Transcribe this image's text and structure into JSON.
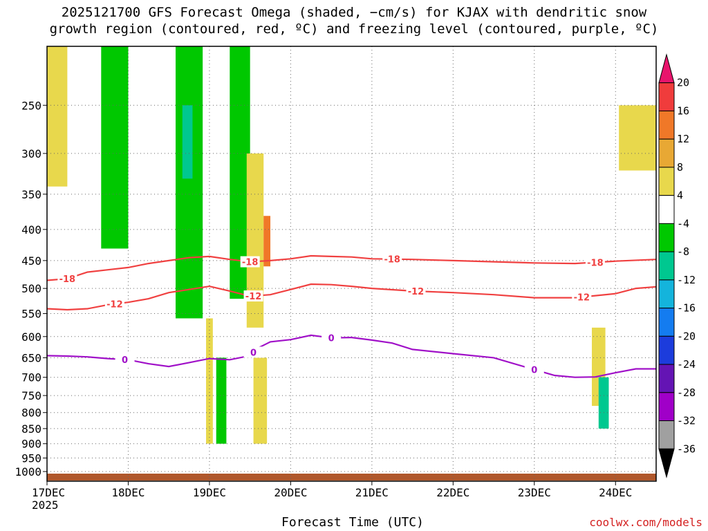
{
  "title_line1": "2025121700 GFS Forecast Omega (shaded, −cm/s) for KJAX with dendritic snow",
  "title_line2": "growth region (contoured, red, ºC) and freezing level (contoured, purple, ºC)",
  "credit": "coolwx.com/models",
  "chart_data": {
    "type": "heatmap",
    "title": "2025121700 GFS Forecast Omega (shaded, −cm/s) for KJAX with dendritic snow growth region (contoured, red, ºC) and freezing level (contoured, purple, ºC)",
    "xlabel": "Forecast Time (UTC)",
    "ylabel": "",
    "x_ticks": [
      "17DEC",
      "18DEC",
      "19DEC",
      "20DEC",
      "21DEC",
      "22DEC",
      "23DEC",
      "24DEC"
    ],
    "x_tick_hours": [
      0,
      24,
      48,
      72,
      96,
      120,
      144,
      168
    ],
    "x_start_year": "2025",
    "xlim_hours": [
      0,
      180
    ],
    "y_ticks": [
      "250",
      "300",
      "350",
      "400",
      "450",
      "500",
      "550",
      "600",
      "650",
      "700",
      "750",
      "800",
      "850",
      "900",
      "950",
      "1000"
    ],
    "y_tick_values": [
      250,
      300,
      350,
      400,
      450,
      500,
      550,
      600,
      650,
      700,
      750,
      800,
      850,
      900,
      950,
      1000
    ],
    "y_scale": "log",
    "ylim": [
      1000,
      200
    ],
    "grid": true,
    "colorbar": {
      "labels": [
        "20",
        "16",
        "12",
        "8",
        "4",
        "-4",
        "-8",
        "-12",
        "-16",
        "-20",
        "-24",
        "-28",
        "-32",
        "-36"
      ],
      "colors": [
        "#e8146c",
        "#f03c3c",
        "#f07828",
        "#e8a834",
        "#e8d84c",
        "#ffffff",
        "#00c800",
        "#00c890",
        "#14b4dc",
        "#147cf0",
        "#1c3cdc",
        "#6414b4",
        "#a000c8",
        "#a0a0a0",
        "#000000"
      ]
    },
    "contours": [
      {
        "name": "-18",
        "color": "#f04040",
        "label": "-18",
        "points": [
          [
            0,
            485
          ],
          [
            6,
            482
          ],
          [
            12,
            470
          ],
          [
            18,
            466
          ],
          [
            24,
            462
          ],
          [
            30,
            455
          ],
          [
            36,
            450
          ],
          [
            42,
            445
          ],
          [
            48,
            443
          ],
          [
            54,
            448
          ],
          [
            60,
            452
          ],
          [
            66,
            450
          ],
          [
            72,
            447
          ],
          [
            78,
            442
          ],
          [
            84,
            443
          ],
          [
            90,
            444
          ],
          [
            96,
            447
          ],
          [
            108,
            448
          ],
          [
            120,
            450
          ],
          [
            132,
            452
          ],
          [
            144,
            454
          ],
          [
            156,
            455
          ],
          [
            168,
            451
          ],
          [
            180,
            448
          ]
        ],
        "label_hours": [
          6,
          60,
          102,
          162
        ]
      },
      {
        "name": "-12",
        "color": "#f04040",
        "label": "-12",
        "points": [
          [
            0,
            540
          ],
          [
            6,
            542
          ],
          [
            12,
            540
          ],
          [
            18,
            532
          ],
          [
            24,
            527
          ],
          [
            30,
            520
          ],
          [
            36,
            508
          ],
          [
            42,
            502
          ],
          [
            48,
            496
          ],
          [
            54,
            505
          ],
          [
            60,
            515
          ],
          [
            66,
            512
          ],
          [
            72,
            502
          ],
          [
            78,
            492
          ],
          [
            84,
            493
          ],
          [
            90,
            496
          ],
          [
            96,
            500
          ],
          [
            108,
            505
          ],
          [
            120,
            508
          ],
          [
            132,
            512
          ],
          [
            144,
            518
          ],
          [
            156,
            518
          ],
          [
            168,
            510
          ],
          [
            174,
            500
          ],
          [
            180,
            497
          ]
        ],
        "label_hours": [
          20,
          61,
          109,
          158
        ]
      },
      {
        "name": "0",
        "color": "#a010c8",
        "label": "0",
        "points": [
          [
            0,
            645
          ],
          [
            6,
            646
          ],
          [
            12,
            648
          ],
          [
            18,
            652
          ],
          [
            24,
            655
          ],
          [
            30,
            665
          ],
          [
            36,
            672
          ],
          [
            42,
            662
          ],
          [
            48,
            652
          ],
          [
            54,
            655
          ],
          [
            60,
            645
          ],
          [
            62,
            628
          ],
          [
            66,
            612
          ],
          [
            72,
            607
          ],
          [
            78,
            597
          ],
          [
            84,
            603
          ],
          [
            90,
            602
          ],
          [
            96,
            608
          ],
          [
            102,
            615
          ],
          [
            108,
            630
          ],
          [
            120,
            640
          ],
          [
            132,
            650
          ],
          [
            144,
            680
          ],
          [
            150,
            695
          ],
          [
            156,
            700
          ],
          [
            162,
            699
          ],
          [
            168,
            688
          ],
          [
            174,
            678
          ],
          [
            180,
            678
          ]
        ],
        "label_hours": [
          23,
          61,
          84,
          144
        ]
      }
    ],
    "shaded_regions": [
      {
        "value": 6,
        "hour_range": [
          0,
          6
        ],
        "p_range": [
          200,
          340
        ]
      },
      {
        "value": -6,
        "hour_range": [
          16,
          24
        ],
        "p_range": [
          200,
          430
        ]
      },
      {
        "value": -6,
        "hour_range": [
          38,
          46
        ],
        "p_range": [
          200,
          560
        ]
      },
      {
        "value": -10,
        "hour_range": [
          40,
          43
        ],
        "p_range": [
          250,
          330
        ]
      },
      {
        "value": 6,
        "hour_range": [
          47,
          49
        ],
        "p_range": [
          560,
          900
        ]
      },
      {
        "value": -6,
        "hour_range": [
          50,
          53
        ],
        "p_range": [
          650,
          900
        ]
      },
      {
        "value": -6,
        "hour_range": [
          54,
          60
        ],
        "p_range": [
          200,
          520
        ]
      },
      {
        "value": 6,
        "hour_range": [
          59,
          64
        ],
        "p_range": [
          300,
          580
        ]
      },
      {
        "value": 14,
        "hour_range": [
          64,
          66
        ],
        "p_range": [
          380,
          460
        ]
      },
      {
        "value": 6,
        "hour_range": [
          61,
          65
        ],
        "p_range": [
          650,
          900
        ]
      },
      {
        "value": 6,
        "hour_range": [
          169,
          180
        ],
        "p_range": [
          250,
          320
        ]
      },
      {
        "value": 6,
        "hour_range": [
          161,
          165
        ],
        "p_range": [
          580,
          780
        ]
      },
      {
        "value": -10,
        "hour_range": [
          163,
          166
        ],
        "p_range": [
          700,
          850
        ]
      }
    ],
    "surface": {
      "color": "#b0582c",
      "p_range": [
        1000,
        1050
      ]
    }
  }
}
